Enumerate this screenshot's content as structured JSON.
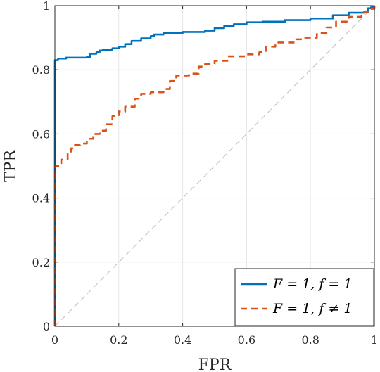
{
  "chart_data": {
    "type": "line",
    "title": "",
    "xlabel": "FPR",
    "ylabel": "TPR",
    "xlim": [
      0,
      1
    ],
    "ylim": [
      0,
      1
    ],
    "grid": true,
    "legend_position": "bottom-right",
    "x_ticks": [
      0,
      0.2,
      0.4,
      0.6,
      0.8,
      1
    ],
    "x_tick_labels": [
      "0",
      "0.2",
      "0.4",
      "0.6",
      "0.8",
      "1"
    ],
    "y_ticks": [
      0,
      0.2,
      0.4,
      0.6,
      0.8,
      1
    ],
    "y_tick_labels": [
      "0",
      "0.2",
      "0.4",
      "0.6",
      "0.8",
      "1"
    ],
    "series": [
      {
        "name": "F = 1, f = 1",
        "color": "#0072BD",
        "style": "solid",
        "points": [
          [
            0,
            0
          ],
          [
            0,
            0.83
          ],
          [
            0.01,
            0.835
          ],
          [
            0.035,
            0.838
          ],
          [
            0.1,
            0.84
          ],
          [
            0.11,
            0.85
          ],
          [
            0.13,
            0.855
          ],
          [
            0.14,
            0.86
          ],
          [
            0.15,
            0.862
          ],
          [
            0.18,
            0.867
          ],
          [
            0.2,
            0.872
          ],
          [
            0.22,
            0.88
          ],
          [
            0.24,
            0.89
          ],
          [
            0.27,
            0.898
          ],
          [
            0.3,
            0.905
          ],
          [
            0.31,
            0.91
          ],
          [
            0.34,
            0.915
          ],
          [
            0.4,
            0.918
          ],
          [
            0.47,
            0.922
          ],
          [
            0.5,
            0.93
          ],
          [
            0.53,
            0.937
          ],
          [
            0.56,
            0.942
          ],
          [
            0.6,
            0.948
          ],
          [
            0.65,
            0.95
          ],
          [
            0.72,
            0.955
          ],
          [
            0.8,
            0.96
          ],
          [
            0.87,
            0.97
          ],
          [
            0.92,
            0.978
          ],
          [
            0.97,
            0.982
          ],
          [
            0.98,
            0.992
          ],
          [
            0.99,
            0.996
          ],
          [
            1,
            1
          ]
        ]
      },
      {
        "name": "F = 1, f ≠ 1",
        "color": "#D95319",
        "style": "dashed",
        "points": [
          [
            0,
            0
          ],
          [
            0,
            0.5
          ],
          [
            0.02,
            0.52
          ],
          [
            0.04,
            0.54
          ],
          [
            0.05,
            0.555
          ],
          [
            0.06,
            0.565
          ],
          [
            0.08,
            0.57
          ],
          [
            0.1,
            0.585
          ],
          [
            0.12,
            0.6
          ],
          [
            0.14,
            0.61
          ],
          [
            0.16,
            0.63
          ],
          [
            0.18,
            0.655
          ],
          [
            0.2,
            0.67
          ],
          [
            0.22,
            0.685
          ],
          [
            0.25,
            0.71
          ],
          [
            0.27,
            0.725
          ],
          [
            0.3,
            0.73
          ],
          [
            0.34,
            0.74
          ],
          [
            0.36,
            0.765
          ],
          [
            0.38,
            0.782
          ],
          [
            0.42,
            0.788
          ],
          [
            0.45,
            0.81
          ],
          [
            0.47,
            0.818
          ],
          [
            0.5,
            0.828
          ],
          [
            0.54,
            0.842
          ],
          [
            0.6,
            0.848
          ],
          [
            0.64,
            0.855
          ],
          [
            0.66,
            0.872
          ],
          [
            0.69,
            0.885
          ],
          [
            0.75,
            0.895
          ],
          [
            0.78,
            0.9
          ],
          [
            0.82,
            0.915
          ],
          [
            0.85,
            0.932
          ],
          [
            0.88,
            0.95
          ],
          [
            0.92,
            0.965
          ],
          [
            0.96,
            0.98
          ],
          [
            0.98,
            0.99
          ],
          [
            1,
            1
          ]
        ]
      },
      {
        "name": "",
        "color": "#BDBDBD",
        "style": "dashed-thin",
        "points": [
          [
            0,
            0
          ],
          [
            1,
            1
          ]
        ]
      }
    ],
    "legend_entries": [
      "F = 1, f = 1",
      "F = 1, f ≠ 1"
    ]
  }
}
